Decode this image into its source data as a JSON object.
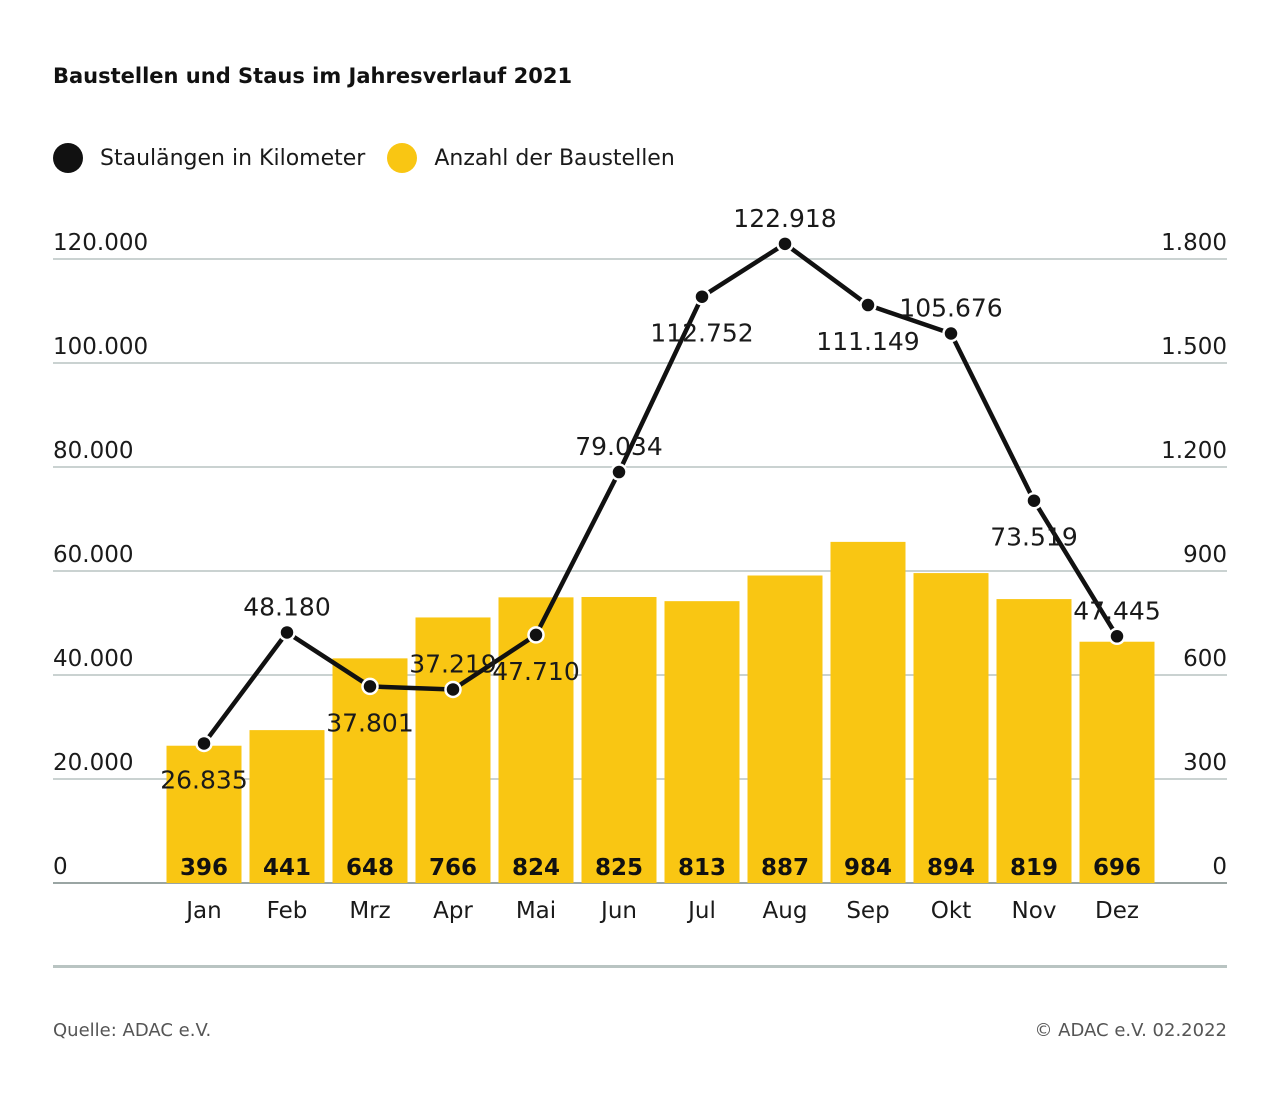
{
  "title": "Baustellen und Staus im Jahresverlauf 2021",
  "legend": [
    {
      "label": "Staulängen in Kilometer",
      "color": "#111111",
      "icon": "black-circle"
    },
    {
      "label": "Anzahl der Baustellen",
      "color": "#f9c613",
      "icon": "yellow-circle"
    }
  ],
  "chart_data": {
    "type": "bar+line",
    "title": "Baustellen und Staus im Jahresverlauf 2021",
    "categories": [
      "Jan",
      "Feb",
      "Mrz",
      "Apr",
      "Mai",
      "Jun",
      "Jul",
      "Aug",
      "Sep",
      "Okt",
      "Nov",
      "Dez"
    ],
    "series": [
      {
        "name": "Anzahl der Baustellen",
        "type": "bar",
        "axis": "right",
        "color": "#f9c613",
        "values": [
          396,
          441,
          648,
          766,
          824,
          825,
          813,
          887,
          984,
          894,
          819,
          696
        ],
        "labels": [
          "396",
          "441",
          "648",
          "766",
          "824",
          "825",
          "813",
          "887",
          "984",
          "894",
          "819",
          "696"
        ]
      },
      {
        "name": "Staulängen in Kilometer",
        "type": "line",
        "axis": "left",
        "color": "#111111",
        "values": [
          26835,
          48180,
          37801,
          37219,
          47710,
          79034,
          112752,
          122918,
          111149,
          105676,
          73519,
          47445
        ],
        "labels": [
          "26.835",
          "48.180",
          "37.801",
          "37.219",
          "47.710",
          "79.034",
          "112.752",
          "122.918",
          "111.149",
          "105.676",
          "73.519",
          "47.445"
        ],
        "label_positions": [
          "below",
          "above",
          "below",
          "above",
          "below",
          "above",
          "below",
          "above",
          "below",
          "above",
          "below",
          "above"
        ]
      }
    ],
    "left_axis": {
      "range": [
        0,
        120000
      ],
      "ticks": [
        0,
        20000,
        40000,
        60000,
        80000,
        100000,
        120000
      ],
      "tick_labels": [
        "0",
        "20.000",
        "40.000",
        "60.000",
        "80.000",
        "100.000",
        "120.000"
      ]
    },
    "right_axis": {
      "range": [
        0,
        1800
      ],
      "ticks": [
        0,
        300,
        600,
        900,
        1200,
        1500,
        1800
      ],
      "tick_labels": [
        "0",
        "300",
        "600",
        "900",
        "1.200",
        "1.500",
        "1.800"
      ]
    },
    "grid": true,
    "legend_position": "top-left"
  },
  "footer": {
    "source": "Quelle: ADAC e.V.",
    "copyright": "© ADAC e.V. 02.2022"
  }
}
